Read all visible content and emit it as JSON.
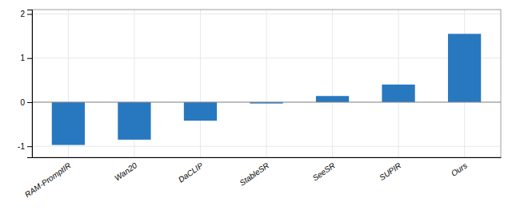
{
  "chart_data": {
    "type": "bar",
    "categories": [
      "RAM-PromptIR",
      "Wan20",
      "DaCLIP",
      "StableSR",
      "SeeSR",
      "SUPIR",
      "Ours"
    ],
    "values": [
      -0.97,
      -0.85,
      -0.42,
      -0.03,
      0.14,
      0.4,
      1.55
    ],
    "color": "#2878c0",
    "ylim": [
      -1.25,
      2.1
    ],
    "yticks": [
      -1,
      0,
      1,
      2
    ],
    "grid": true
  }
}
